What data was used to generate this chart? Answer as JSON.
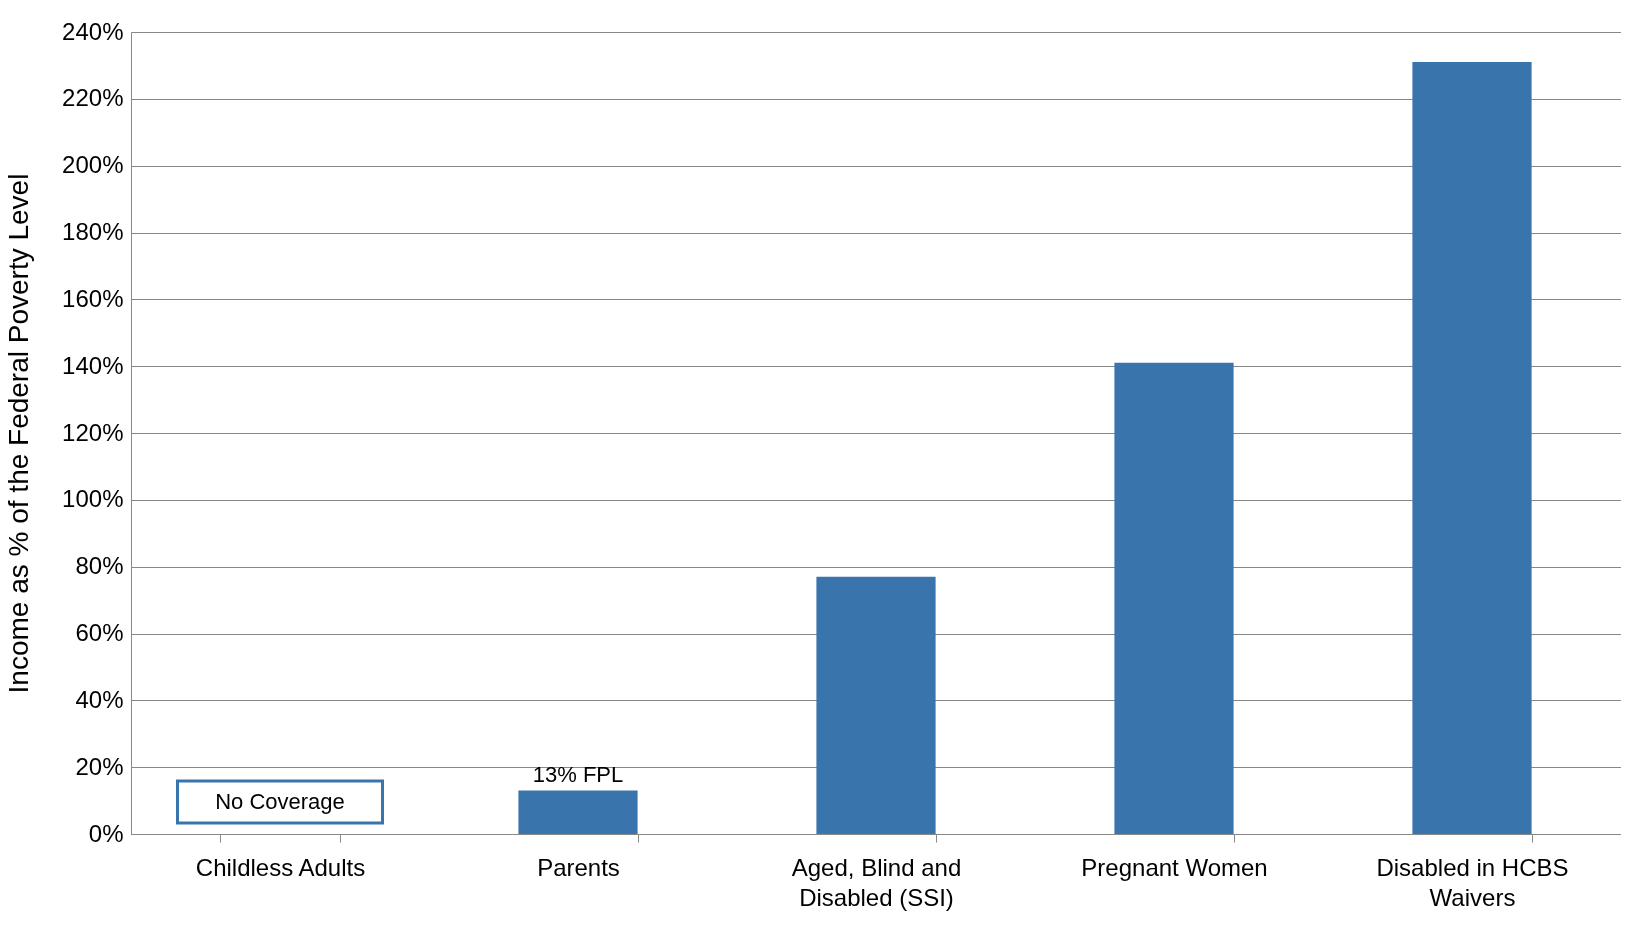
{
  "chart_data": {
    "type": "bar",
    "ylabel": "Income as % of the Federal Poverty Level",
    "categories": [
      "Childless Adults",
      "Parents",
      "Aged, Blind and Disabled (SSI)",
      "Pregnant Women",
      "Disabled in HCBS Waivers"
    ],
    "values": [
      null,
      13,
      77,
      141,
      231
    ],
    "color": "#3a74ad",
    "value_labels": [
      null,
      "13% FPL",
      null,
      null,
      null
    ],
    "annotations": [
      "No Coverage"
    ],
    "ylim": [
      0,
      240
    ],
    "yticks": [
      {
        "value": 0,
        "label": "0%"
      },
      {
        "value": 20,
        "label": "20%"
      },
      {
        "value": 40,
        "label": "40%"
      },
      {
        "value": 60,
        "label": "60%"
      },
      {
        "value": 80,
        "label": "80%"
      },
      {
        "value": 100,
        "label": "100%"
      },
      {
        "value": 120,
        "label": "120%"
      },
      {
        "value": 140,
        "label": "140%"
      },
      {
        "value": 160,
        "label": "160%"
      },
      {
        "value": 180,
        "label": "180%"
      },
      {
        "value": 200,
        "label": "200%"
      },
      {
        "value": 220,
        "label": "220%"
      },
      {
        "value": 240,
        "label": "240%"
      }
    ],
    "grid": "y"
  }
}
